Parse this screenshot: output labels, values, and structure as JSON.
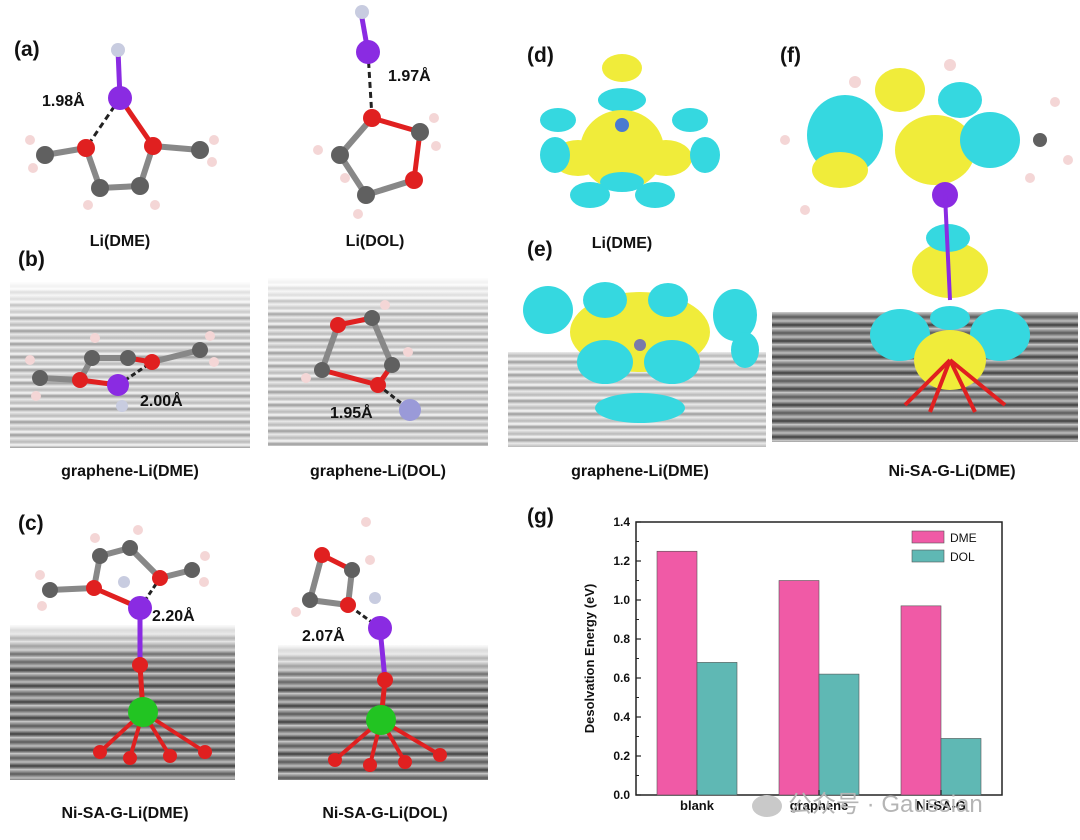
{
  "panels": {
    "a": {
      "label": "(a)",
      "captions": [
        "Li(DME)",
        "Li(DOL)"
      ],
      "bonds": [
        "1.98Å",
        "1.97Å"
      ]
    },
    "b": {
      "label": "(b)",
      "captions": [
        "graphene-Li(DME)",
        "graphene-Li(DOL)"
      ],
      "bonds": [
        "2.00Å",
        "1.95Å"
      ]
    },
    "c": {
      "label": "(c)",
      "captions": [
        "Ni-SA-G-Li(DME)",
        "Ni-SA-G-Li(DOL)"
      ],
      "bonds": [
        "2.20Å",
        "2.07Å"
      ]
    },
    "d": {
      "label": "(d)",
      "caption": "Li(DME)"
    },
    "e": {
      "label": "(e)",
      "caption": "graphene-Li(DME)"
    },
    "f": {
      "label": "(f)",
      "caption": "Ni-SA-G-Li(DME)"
    },
    "g": {
      "label": "(g)"
    }
  },
  "colors": {
    "carbon": "#5a5a5a",
    "oxygen": "#e02020",
    "lithium": "#8a2be2",
    "hydrogen": "#f4d6d6",
    "nickel": "#22c422",
    "isosurface_yellow": "#f0ec3a",
    "isosurface_cyan": "#35d8e0",
    "dme_bar": "#f05aa6",
    "dol_bar": "#5fb8b4"
  },
  "chart_data": {
    "type": "bar",
    "categories": [
      "blank",
      "graphene",
      "Ni-SA-G"
    ],
    "series": [
      {
        "name": "DME",
        "values": [
          1.25,
          1.1,
          0.97
        ]
      },
      {
        "name": "DOL",
        "values": [
          0.68,
          0.62,
          0.29
        ]
      }
    ],
    "ylabel": "Desolvation Energy (eV)",
    "xlabel": "",
    "ylim": [
      0.0,
      1.4
    ],
    "yticks": [
      "0.0",
      "0.2",
      "0.4",
      "0.6",
      "0.8",
      "1.0",
      "1.2",
      "1.4"
    ],
    "legend": "top-right",
    "grid": false
  },
  "watermark": {
    "icon": "wechat-icon",
    "text": "公众号 · Gaussian"
  }
}
